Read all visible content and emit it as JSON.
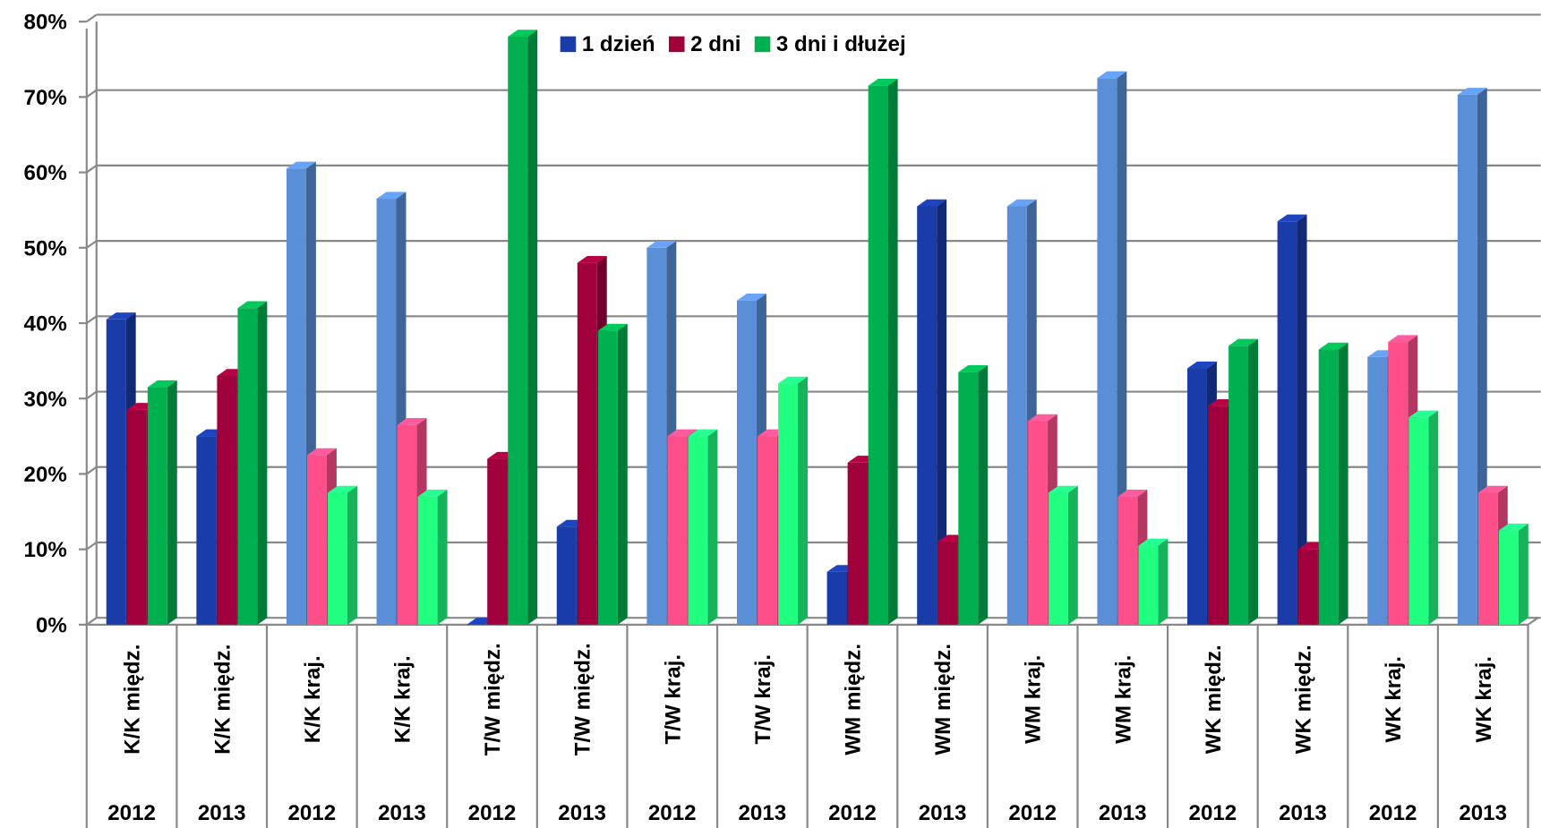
{
  "chart_data": {
    "type": "bar3d",
    "categories": [
      "K/K międz.",
      "K/K międz.",
      "K/K kraj.",
      "K/K kraj.",
      "T/W międz.",
      "T/W międz.",
      "T/W kraj.",
      "T/W kraj.",
      "WM międz.",
      "WM międz.",
      "WM kraj.",
      "WM kraj.",
      "WK międz.",
      "WK międz.",
      "WK kraj.",
      "WK kraj."
    ],
    "years": [
      "2012",
      "2013",
      "2012",
      "2013",
      "2012",
      "2013",
      "2012",
      "2013",
      "2012",
      "2013",
      "2012",
      "2013",
      "2012",
      "2013",
      "2012",
      "2013"
    ],
    "series": [
      {
        "name": "1 dzień",
        "color": "#1a3ca8",
        "colors": [
          "#1a3ca8",
          "#1a3ca8",
          "#5a8fd8",
          "#5a8fd8",
          "#1a3ca8",
          "#1a3ca8",
          "#5a8fd8",
          "#5a8fd8",
          "#1a3ca8",
          "#1a3ca8",
          "#5a8fd8",
          "#5a8fd8",
          "#1a3ca8",
          "#1a3ca8",
          "#5a8fd8",
          "#5a8fd8"
        ],
        "values": [
          40.5,
          25,
          60.5,
          56.5,
          0,
          13,
          50,
          43,
          7,
          55.5,
          55.5,
          72.5,
          34,
          53.5,
          35.5,
          70.3
        ]
      },
      {
        "name": "2 dni",
        "color": "#a0003c",
        "colors": [
          "#a0003c",
          "#a0003c",
          "#ff4f8a",
          "#ff4f8a",
          "#a0003c",
          "#a0003c",
          "#ff4f8a",
          "#ff4f8a",
          "#a0003c",
          "#a0003c",
          "#ff4f8a",
          "#ff4f8a",
          "#a0003c",
          "#a0003c",
          "#ff4f8a",
          "#ff4f8a"
        ],
        "values": [
          28.5,
          33,
          22.5,
          26.5,
          22,
          48,
          25,
          25,
          21.5,
          11,
          27,
          17,
          29,
          10,
          37.5,
          17.5
        ]
      },
      {
        "name": "3 dni i dłużej",
        "color": "#00b050",
        "colors": [
          "#00b050",
          "#00b050",
          "#20ff80",
          "#20ff80",
          "#00b050",
          "#00b050",
          "#20ff80",
          "#20ff80",
          "#00b050",
          "#00b050",
          "#20ff80",
          "#20ff80",
          "#00b050",
          "#00b050",
          "#20ff80",
          "#20ff80"
        ],
        "values": [
          31.5,
          42,
          17.5,
          17,
          78,
          39,
          25,
          32,
          71.5,
          33.5,
          17.5,
          10.5,
          37,
          36.5,
          27.5,
          12.5
        ]
      }
    ],
    "ylim": [
      0,
      80
    ],
    "yticks": [
      {
        "value": 0,
        "label": "0%"
      },
      {
        "value": 10,
        "label": "10%"
      },
      {
        "value": 20,
        "label": "20%"
      },
      {
        "value": 30,
        "label": "30%"
      },
      {
        "value": 40,
        "label": "40%"
      },
      {
        "value": 50,
        "label": "50%"
      },
      {
        "value": 60,
        "label": "60%"
      },
      {
        "value": 70,
        "label": "70%"
      },
      {
        "value": 80,
        "label": "80%"
      }
    ],
    "grid": true,
    "legend": "top"
  }
}
